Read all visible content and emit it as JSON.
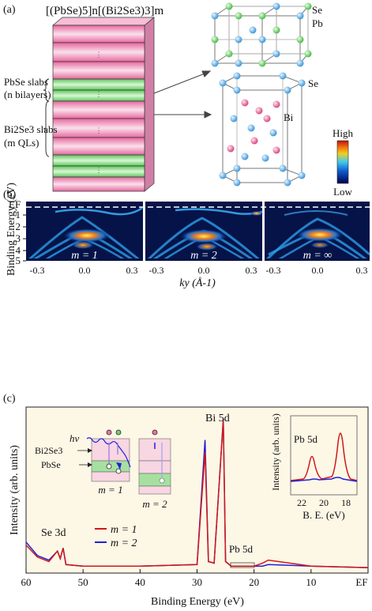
{
  "panel_a": {
    "label": "(a)",
    "formula": "[(PbSe)5]n[(Bi2Se3)3]m",
    "pbse_label1": "PbSe slabs",
    "pbse_label2": "(n bilayers)",
    "bise_label1": "Bi2Se3 slabs",
    "bise_label2": "(m QLs)",
    "atom_se_top": "Se",
    "atom_pb": "Pb",
    "atom_se_bottom": "Se",
    "atom_bi": "Bi",
    "colorbar_high": "High",
    "colorbar_low": "Low",
    "colors": {
      "pink": "#f2a6c6",
      "green": "#8fe08a",
      "se": "#4aa8e8",
      "pb": "#6cd46a",
      "bi": "#e0568a"
    }
  },
  "panel_b": {
    "label": "(b)",
    "ylabel": "Binding Energy (eV)",
    "ef_label": "EF",
    "y_ticks": [
      "1",
      "2",
      "3",
      "4",
      "5"
    ],
    "x_ticks": [
      "-0.3",
      "0.0",
      "0.3"
    ],
    "xlabel": "ky (Å-1)",
    "subpanels": [
      "m = 1",
      "m = 2",
      "m = ∞"
    ]
  },
  "panel_c": {
    "label": "(c)",
    "ylabel": "Intensity (arb. units)",
    "xlabel": "Binding Energy (eV)",
    "x_ticks": [
      "60",
      "50",
      "40",
      "30",
      "20",
      "10",
      "EF"
    ],
    "peak_se": "Se 3d",
    "peak_bi": "Bi 5d",
    "peak_pb": "Pb 5d",
    "legend": [
      {
        "name": "m = 1",
        "color": "#d01818"
      },
      {
        "name": "m = 2",
        "color": "#2020d8"
      }
    ],
    "schematic": {
      "hv": "hν",
      "bise": "Bi2Se3",
      "pbse": "PbSe",
      "m1": "m = 1",
      "m2": "m = 2"
    },
    "inset": {
      "peak": "Pb 5d",
      "ylabel": "Intensity (arb. units)",
      "xlabel": "B. E. (eV)",
      "x_ticks": [
        "22",
        "20",
        "18"
      ]
    }
  },
  "chart_data": {
    "type": "line",
    "xlabel": "Binding Energy (eV)",
    "ylabel": "Intensity (arb. units)",
    "xlim": [
      60,
      0
    ],
    "series": [
      {
        "name": "m = 1",
        "x": [
          60,
          58,
          56,
          54.5,
          54,
          53.5,
          53,
          50,
          40,
          30,
          28.6,
          28,
          27,
          25.4,
          25,
          24,
          20,
          18.5,
          17.5,
          10,
          0
        ],
        "y": [
          0.16,
          0.08,
          0.05,
          0.12,
          0.07,
          0.14,
          0.03,
          0.02,
          0.02,
          0.03,
          0.78,
          0.05,
          0.04,
          0.99,
          0.05,
          0.02,
          0.02,
          0.04,
          0.06,
          0.02,
          0.01
        ]
      },
      {
        "name": "m = 2",
        "x": [
          60,
          58,
          56,
          54.5,
          54,
          53.5,
          53,
          50,
          40,
          30,
          28.6,
          28,
          27,
          25.4,
          25,
          24,
          20,
          18.5,
          17.5,
          10,
          0
        ],
        "y": [
          0.18,
          0.09,
          0.06,
          0.12,
          0.07,
          0.14,
          0.03,
          0.02,
          0.02,
          0.03,
          0.86,
          0.05,
          0.04,
          1.0,
          0.05,
          0.02,
          0.02,
          0.02,
          0.03,
          0.02,
          0.01
        ]
      }
    ]
  }
}
